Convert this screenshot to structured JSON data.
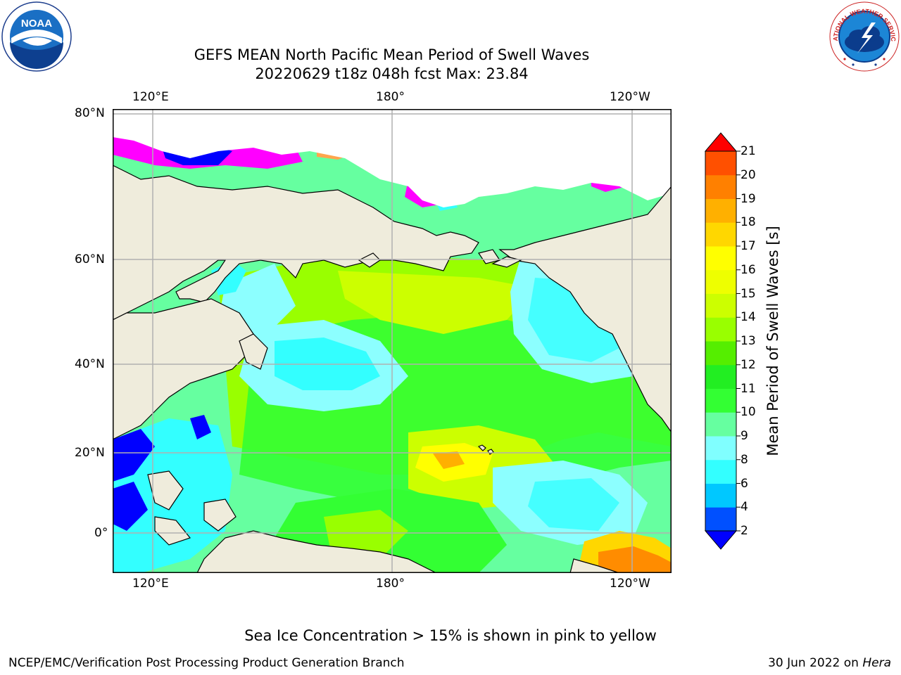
{
  "header": {
    "title_line1": "GEFS MEAN North Pacific Mean Period of Swell Waves",
    "title_line2": "20220629 t18z 048h fcst   Max: 23.84"
  },
  "logos": {
    "left": {
      "icon": "noaa-logo-icon",
      "text": "NOAA",
      "ring_text": "NATIONAL OCEANIC AND ATMOSPHERIC ADMINISTRATION · U.S. DEPARTMENT OF COMMERCE"
    },
    "right": {
      "icon": "nws-logo-icon",
      "ring_text": "NATIONAL WEATHER SERVICE"
    }
  },
  "map": {
    "top_lon_labels": [
      "120°E",
      "180°",
      "120°W"
    ],
    "bottom_lon_labels": [
      "120°E",
      "180°",
      "120°W"
    ],
    "lat_labels": [
      "80°N",
      "60°N",
      "40°N",
      "20°N",
      "0°"
    ],
    "land_color": "#efecdc",
    "ocean_dominant_colors": [
      "#33ffff",
      "#8cffff",
      "#66ffa0",
      "#33ff33",
      "#99ff00",
      "#ccff00",
      "#ffff00",
      "#ffd700",
      "#ff8c00",
      "#0000ff",
      "#ff00ff",
      "#ffa64d"
    ]
  },
  "colorbar": {
    "label": "Mean Period of Swell Waves [s]",
    "ticks": [
      "2",
      "4",
      "6",
      "8",
      "9",
      "10",
      "11",
      "12",
      "13",
      "14",
      "15",
      "16",
      "17",
      "18",
      "19",
      "20",
      "21"
    ],
    "colors": [
      "#0050ff",
      "#00c8ff",
      "#33ffff",
      "#80ffff",
      "#66ffa0",
      "#33ff33",
      "#22ee22",
      "#55ee00",
      "#99ff00",
      "#ccff00",
      "#eeff00",
      "#ffff00",
      "#ffd700",
      "#ffb000",
      "#ff8000",
      "#ff5000",
      "#ff2000"
    ],
    "under_color": "#0000ff",
    "over_color": "#ff0000"
  },
  "note": "Sea Ice Concentration > 15% is shown in pink to yellow",
  "footer": {
    "left": "NCEP/EMC/Verification Post Processing Product Generation Branch",
    "right_date": "30 Jun 2022 on ",
    "right_host": "Hera"
  }
}
